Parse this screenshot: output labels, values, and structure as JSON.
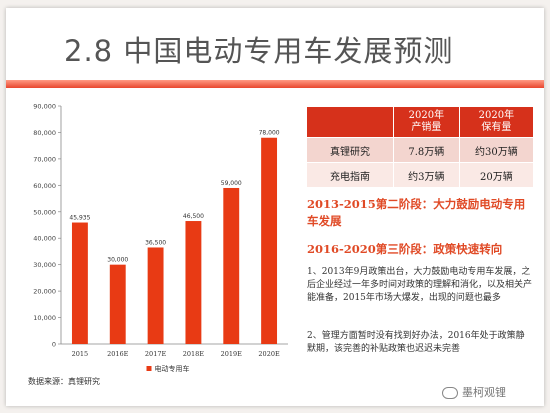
{
  "title": "2.8 中国电动专用车发展预测",
  "chart_data": {
    "type": "bar",
    "categories": [
      "2015",
      "2016E",
      "2017E",
      "2018E",
      "2019E",
      "2020E"
    ],
    "series": [
      {
        "name": "电动专用车",
        "values": [
          45935,
          30000,
          36500,
          46500,
          59000,
          78000
        ]
      }
    ],
    "data_labels": [
      "45,935",
      "30,000",
      "36,500",
      "46,500",
      "59,000",
      "78,000"
    ],
    "yticks": [
      "0",
      "10,000",
      "20,000",
      "30,000",
      "40,000",
      "50,000",
      "60,000",
      "70,000",
      "80,000",
      "90,000"
    ],
    "ylim": [
      0,
      90000
    ],
    "bar_color": "#e83a14",
    "legend_position": "bottom"
  },
  "source": "数据来源：真锂研究",
  "table": {
    "headers": [
      "",
      "2020年\n产销量",
      "2020年\n保有量"
    ],
    "rows": [
      [
        "真锂研究",
        "7.8万辆",
        "约30万辆"
      ],
      [
        "充电指南",
        "约3万辆",
        "20万辆"
      ]
    ]
  },
  "stage1": "2013-2015第二阶段：大力鼓励电动专用车发展",
  "stage2": "2016-2020第三阶段：政策快速转向",
  "para1": "1、2013年9月政策出台，大力鼓励电动专用车发展，之后企业经过一年多时间对政策的理解和消化，以及相关产能准备，2015年市场大爆发，出现的问题也最多",
  "para2": "2、管理方面暂时没有找到好办法，2016年处于政策静默期，该完善的补贴政策也迟迟未完善",
  "watermark": "墨柯观锂",
  "colors": {
    "accent": "#d6311b",
    "stage_text": "#e04a26"
  }
}
